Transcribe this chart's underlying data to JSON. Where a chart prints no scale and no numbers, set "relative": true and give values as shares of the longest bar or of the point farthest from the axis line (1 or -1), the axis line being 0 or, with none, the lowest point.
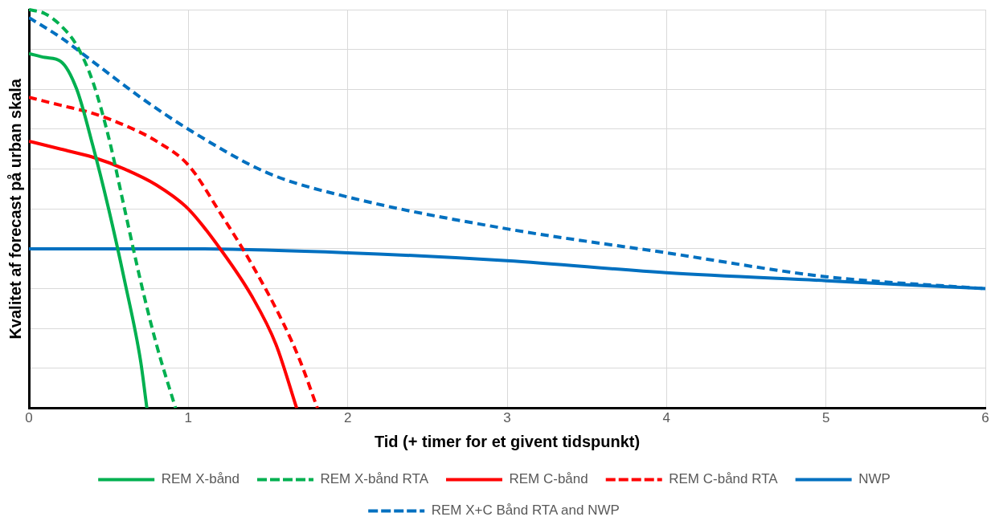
{
  "chart_data": {
    "type": "line",
    "relative": true,
    "xlabel": "Tid (+ timer for et givent tidspunkt)",
    "ylabel": "Kvalitet af forecast på urban skala",
    "xlim": [
      0,
      6
    ],
    "xticks": [
      0,
      1,
      2,
      3,
      4,
      5,
      6
    ],
    "grid": true,
    "legend": "bottom",
    "marker": "none",
    "series": [
      {
        "name": "REM X-bånd",
        "color": "#00b050",
        "line_style": "solid",
        "x": [
          0,
          0.1,
          0.2,
          0.3,
          0.4,
          0.5,
          0.6,
          0.7,
          0.74
        ],
        "values": [
          0.89,
          0.88,
          0.87,
          0.8,
          0.66,
          0.5,
          0.32,
          0.12,
          0
        ]
      },
      {
        "name": "REM X-bånd RTA",
        "color": "#00b050",
        "line_style": "dashed",
        "x": [
          0,
          0.1,
          0.2,
          0.3,
          0.4,
          0.5,
          0.6,
          0.7,
          0.8,
          0.92
        ],
        "values": [
          1,
          0.99,
          0.96,
          0.91,
          0.82,
          0.68,
          0.5,
          0.32,
          0.16,
          0
        ]
      },
      {
        "name": "REM C-bånd",
        "color": "#ff0000",
        "line_style": "solid",
        "x": [
          0,
          0.2,
          0.4,
          0.6,
          0.8,
          1,
          1.2,
          1.4,
          1.55,
          1.68
        ],
        "values": [
          0.67,
          0.65,
          0.63,
          0.6,
          0.56,
          0.5,
          0.4,
          0.28,
          0.16,
          0
        ]
      },
      {
        "name": "REM C-bånd RTA",
        "color": "#ff0000",
        "line_style": "dashed",
        "x": [
          0,
          0.2,
          0.4,
          0.6,
          0.8,
          1,
          1.2,
          1.4,
          1.6,
          1.7,
          1.81
        ],
        "values": [
          0.78,
          0.76,
          0.74,
          0.71,
          0.67,
          0.61,
          0.49,
          0.36,
          0.21,
          0.12,
          0
        ]
      },
      {
        "name": "NWP",
        "color": "#0070c0",
        "line_style": "solid",
        "x": [
          0,
          1,
          2,
          3,
          4,
          5,
          6
        ],
        "values": [
          0.4,
          0.4,
          0.39,
          0.37,
          0.34,
          0.32,
          0.3
        ]
      },
      {
        "name": "REM X+C Bånd RTA and NWP",
        "color": "#0070c0",
        "line_style": "dashed",
        "x": [
          0,
          0.2,
          0.4,
          0.7,
          1,
          1.5,
          2,
          3,
          4,
          5,
          6
        ],
        "values": [
          0.98,
          0.93,
          0.87,
          0.78,
          0.7,
          0.59,
          0.53,
          0.45,
          0.39,
          0.33,
          0.3
        ]
      }
    ]
  }
}
